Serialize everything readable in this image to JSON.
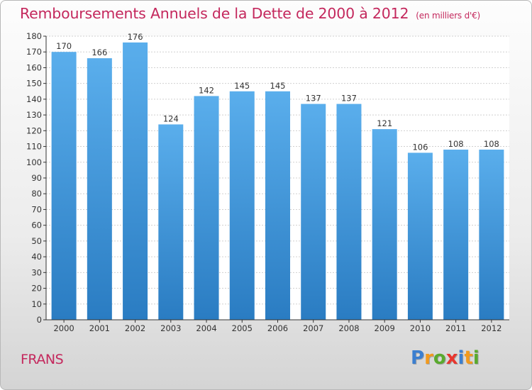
{
  "chart_data": {
    "type": "bar",
    "title": "Remboursements Annuels de la Dette de 2000 à 2012",
    "subtitle": "(en milliers d'€)",
    "categories": [
      "2000",
      "2001",
      "2002",
      "2003",
      "2004",
      "2005",
      "2006",
      "2007",
      "2008",
      "2009",
      "2010",
      "2011",
      "2012"
    ],
    "values": [
      170,
      166,
      176,
      124,
      142,
      145,
      145,
      137,
      137,
      121,
      106,
      108,
      108
    ],
    "ylim": [
      0,
      180
    ],
    "yticks": [
      0,
      10,
      20,
      30,
      40,
      50,
      60,
      70,
      80,
      90,
      100,
      110,
      120,
      130,
      140,
      150,
      160,
      170,
      180
    ],
    "grid": true,
    "bar_color": "#3a8fd6"
  },
  "footer": {
    "commune": "FRANS",
    "logo": {
      "letters": [
        {
          "ch": "P",
          "color": "#3b7fd0"
        },
        {
          "ch": "r",
          "color": "#f29a1d"
        },
        {
          "ch": "o",
          "color": "#5aaa2e"
        },
        {
          "ch": "x",
          "color": "#e8362e"
        },
        {
          "ch": "i",
          "color": "#3b7fd0"
        },
        {
          "ch": "t",
          "color": "#f29a1d"
        },
        {
          "ch": "i",
          "color": "#5aaa2e"
        }
      ]
    }
  }
}
